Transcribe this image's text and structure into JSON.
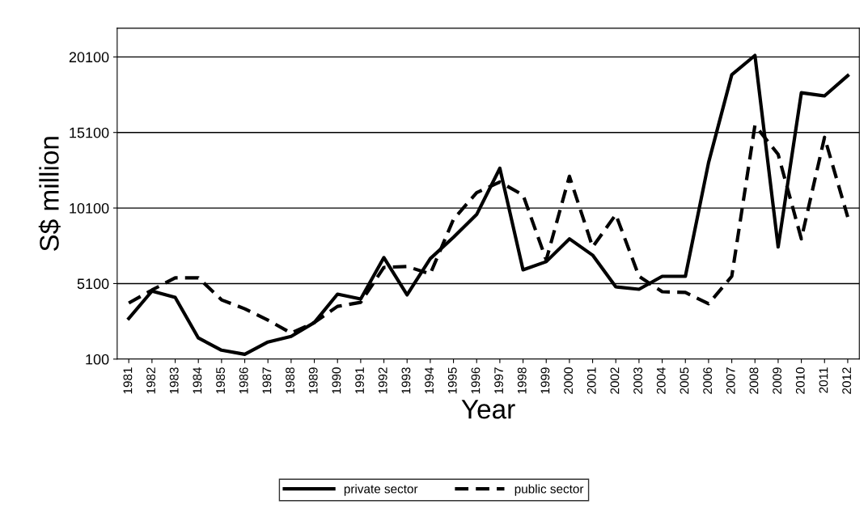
{
  "chart_data": {
    "type": "line",
    "xlabel": "Year",
    "ylabel": "S$ million",
    "categories": [
      "1981",
      "1982",
      "1983",
      "1984",
      "1985",
      "1986",
      "1987",
      "1988",
      "1989",
      "1990",
      "1991",
      "1992",
      "1993",
      "1994",
      "1995",
      "1996",
      "1997",
      "1998",
      "1999",
      "2000",
      "2001",
      "2002",
      "2003",
      "2004",
      "2005",
      "2006",
      "2007",
      "2008",
      "2009",
      "2010",
      "2011",
      "2012"
    ],
    "series": [
      {
        "name": "private sector",
        "color": "#000000",
        "line_style": "solid",
        "values": [
          2790,
          4600,
          4190,
          1500,
          690,
          420,
          1230,
          1600,
          2520,
          4400,
          4080,
          6820,
          4350,
          6750,
          8160,
          9670,
          12730,
          6010,
          6550,
          8060,
          6980,
          4880,
          4720,
          5580,
          5580,
          13110,
          18920,
          20200,
          7520,
          17730,
          17520,
          18860
        ]
      },
      {
        "name": "public sector",
        "color": "#000000",
        "line_style": "dashed",
        "values": [
          3810,
          4670,
          5480,
          5480,
          4020,
          3430,
          2680,
          1820,
          2520,
          3590,
          3860,
          6170,
          6230,
          5740,
          9350,
          11120,
          11820,
          10960,
          6660,
          12200,
          7520,
          9670,
          5580,
          4560,
          4510,
          3760,
          5580,
          15580,
          13650,
          8060,
          14780,
          9510
        ]
      }
    ],
    "ylim": [
      100,
      22000
    ],
    "yticks": [
      100,
      5100,
      10100,
      15100,
      20100
    ],
    "grid": "y",
    "legend": "bottom"
  }
}
